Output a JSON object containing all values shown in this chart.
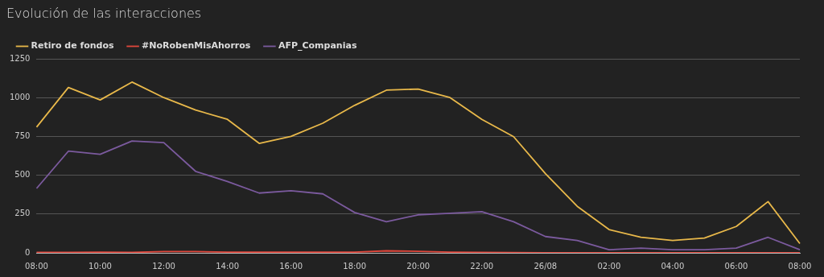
{
  "chart_data": {
    "type": "line",
    "title": "Evolución de las interacciones",
    "categories": [
      "08:00",
      null,
      "10:00",
      null,
      "12:00",
      null,
      "14:00",
      null,
      "16:00",
      null,
      "18:00",
      null,
      "20:00",
      null,
      "22:00",
      null,
      "26/08",
      null,
      "02:00",
      null,
      "04:00",
      null,
      "06:00",
      null,
      "08:00"
    ],
    "series": [
      {
        "name": "Retiro de fondos",
        "color": "#e8b84a",
        "values": [
          810,
          1065,
          985,
          1100,
          1000,
          920,
          860,
          705,
          750,
          835,
          950,
          1048,
          1055,
          1000,
          860,
          748,
          510,
          300,
          150,
          100,
          80,
          95,
          170,
          330,
          60
        ]
      },
      {
        "name": "#NoRobenMisAhorros",
        "color": "#e0473c",
        "values": [
          3,
          3,
          5,
          3,
          8,
          8,
          5,
          5,
          5,
          5,
          5,
          13,
          10,
          5,
          3,
          2,
          1,
          1,
          1,
          1,
          1,
          1,
          1,
          0,
          0
        ]
      },
      {
        "name": "AFP_Companias",
        "color": "#7b5a9e",
        "values": [
          415,
          655,
          635,
          720,
          710,
          525,
          460,
          385,
          400,
          380,
          260,
          200,
          245,
          255,
          265,
          200,
          105,
          80,
          20,
          30,
          20,
          20,
          30,
          100,
          20
        ]
      }
    ],
    "ylim": [
      0,
      1250
    ],
    "yticks": [
      0,
      250,
      500,
      750,
      1000,
      1250
    ],
    "grid": "y",
    "legend": "top left",
    "marker": "none",
    "line_style": "solid"
  }
}
